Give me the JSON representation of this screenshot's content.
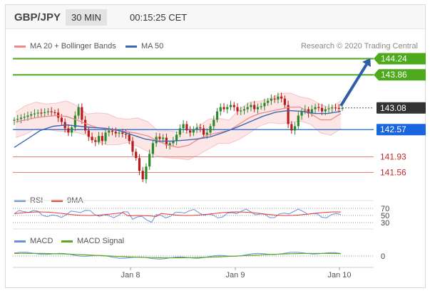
{
  "header": {
    "pair": "GBP/JPY",
    "timeframe": "30 MIN",
    "time": "00:15:25 CET"
  },
  "legend": {
    "ma20_label": "MA 20 + Bollinger Bands",
    "ma50_label": "MA 50",
    "copyright": "Research © 2020 Trading Central"
  },
  "colors": {
    "ma20": "#f08a8a",
    "band": "#fde2e2",
    "ma50": "#3a68b5",
    "resistance": "#4caa1c",
    "support_blue": "#1a66e0",
    "support_red": "#f07a7a",
    "current": "#333333",
    "candle_up": "#2a8a2a",
    "candle_down": "#b71c1c",
    "arrow": "#2e5ea8",
    "rsi": "#6a8fd8",
    "rsi_ma": "#e53935",
    "macd": "#6a8fd8",
    "macd_signal": "#5aa81e"
  },
  "levels": {
    "r2": "144.24",
    "r1": "143.86",
    "current": "143.08",
    "s1": "142.57",
    "s2": "141.93",
    "s3": "141.56"
  },
  "rsi_panel": {
    "rsi_label": "RSI",
    "ma_label": "9MA",
    "ticks": [
      "70",
      "50",
      "30"
    ]
  },
  "macd_panel": {
    "macd_label": "MACD",
    "signal_label": "MACD Signal",
    "tick_zero": "0"
  },
  "x_axis": {
    "labels": [
      "Jan 8",
      "Jan 9",
      "Jan 10"
    ]
  },
  "chart_data": {
    "type": "candlestick",
    "instrument": "GBP/JPY",
    "interval": "30 MIN",
    "ylim": [
      141.1,
      144.45
    ],
    "x_ticks": [
      "Jan 8",
      "Jan 9",
      "Jan 10"
    ],
    "close_approx": [
      142.8,
      142.82,
      142.85,
      142.87,
      142.9,
      142.93,
      142.95,
      142.97,
      142.96,
      142.98,
      143.0,
      142.98,
      142.97,
      142.85,
      142.75,
      142.6,
      142.5,
      142.62,
      142.9,
      143.1,
      142.8,
      142.55,
      142.4,
      142.32,
      142.28,
      142.42,
      142.3,
      142.5,
      142.55,
      142.52,
      142.48,
      142.5,
      142.47,
      142.45,
      142.3,
      142.05,
      141.9,
      141.6,
      141.4,
      141.7,
      142.0,
      142.25,
      142.4,
      142.35,
      142.38,
      142.2,
      142.25,
      142.3,
      142.45,
      142.6,
      142.7,
      142.55,
      142.5,
      142.58,
      142.62,
      142.6,
      142.45,
      142.5,
      142.65,
      142.8,
      143.0,
      143.1,
      143.05,
      143.1,
      143.15,
      143.1,
      143.0,
      143.02,
      143.05,
      143.1,
      143.15,
      143.05,
      143.1,
      143.12,
      143.2,
      143.25,
      143.3,
      143.28,
      143.35,
      143.3,
      143.15,
      142.7,
      142.55,
      142.65,
      142.9,
      143.0,
      143.05,
      142.95,
      143.05,
      143.1,
      143.08,
      143.0,
      143.05,
      143.07,
      143.09,
      143.08,
      143.07,
      143.08
    ],
    "ma20_approx": [
      142.75,
      142.8,
      142.85,
      142.88,
      142.9,
      142.88,
      142.8,
      142.7,
      142.62,
      142.58,
      142.55,
      142.52,
      142.48,
      142.42,
      142.3,
      142.2,
      142.15,
      142.2,
      142.35,
      142.45,
      142.5,
      142.55,
      142.7,
      142.85,
      142.95,
      143.0,
      143.05,
      143.1,
      143.1,
      142.95,
      142.8,
      142.8,
      142.95
    ],
    "ma50_approx": [
      142.15,
      142.35,
      142.55,
      142.65,
      142.68,
      142.65,
      142.62,
      142.6,
      142.55,
      142.45,
      142.35,
      142.3,
      142.3,
      142.32,
      142.35,
      142.4,
      142.5,
      142.62,
      142.75,
      142.88,
      142.98,
      143.02,
      143.0,
      142.95,
      142.95,
      143.0
    ],
    "levels": {
      "resistance": [
        144.24,
        143.86
      ],
      "current": 143.08,
      "support": [
        142.57,
        141.93,
        141.56
      ]
    },
    "projection": {
      "from": 143.08,
      "to": 144.24
    },
    "rsi": {
      "ticks": [
        70,
        50,
        30
      ],
      "ylim": [
        20,
        80
      ]
    },
    "macd": {
      "ticks": [
        0
      ]
    }
  }
}
